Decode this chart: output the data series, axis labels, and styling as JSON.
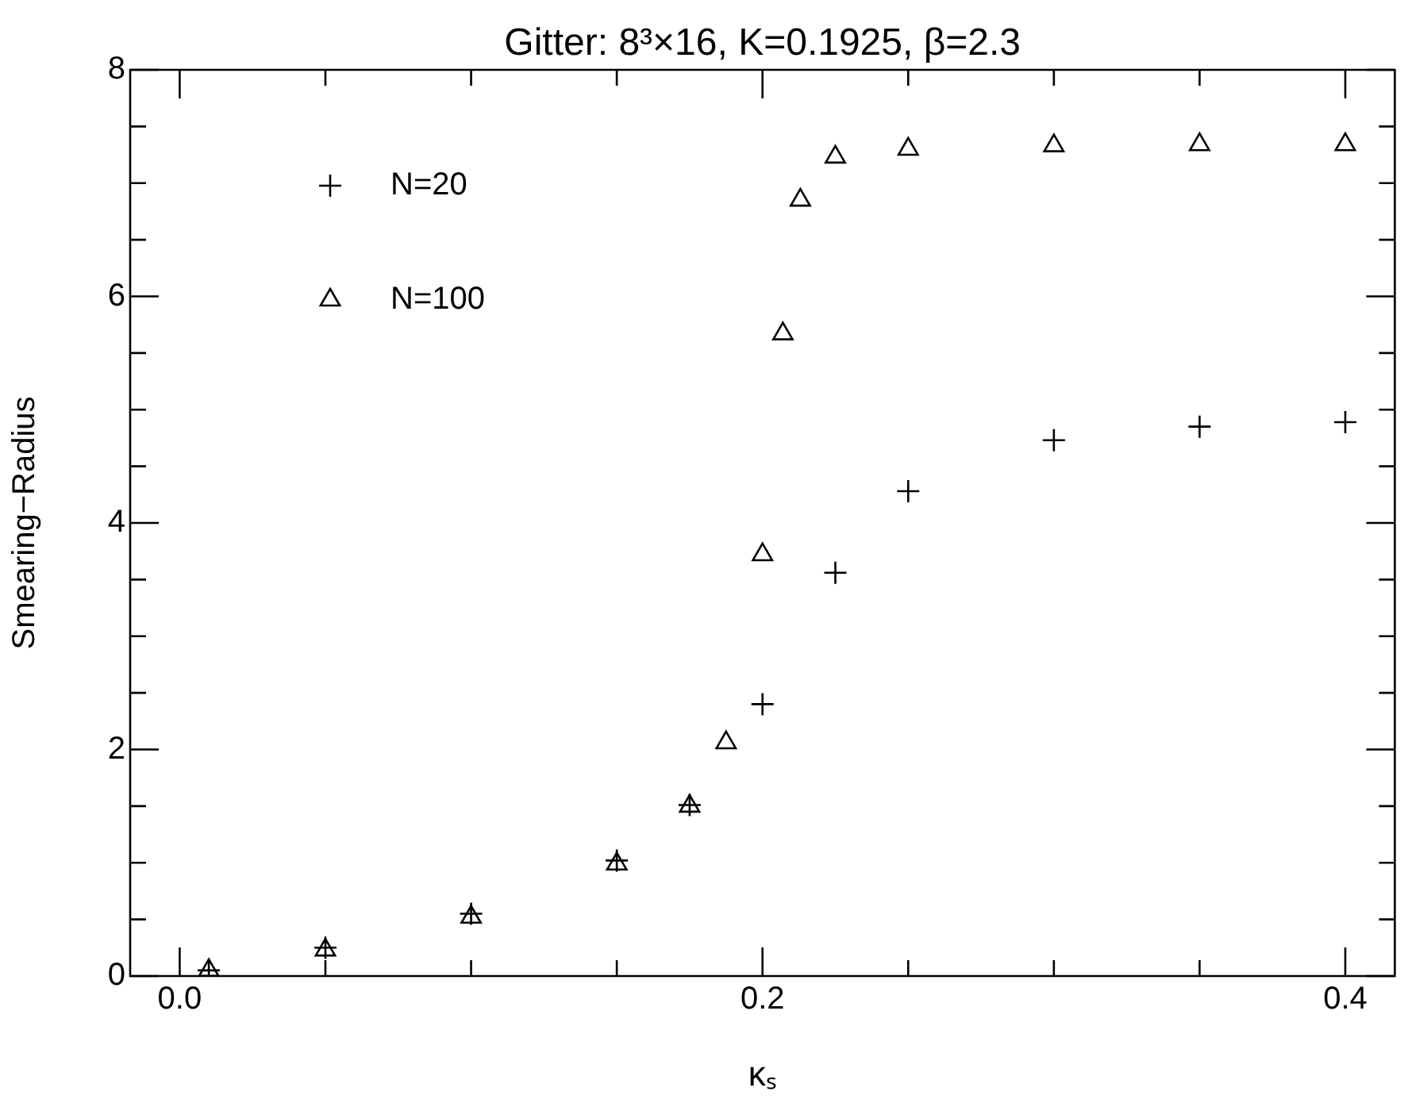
{
  "chart_data": {
    "type": "scatter",
    "title": "Gitter: 8³×16, K=0.1925, β=2.3",
    "xlabel": "κₛ",
    "ylabel": "Smearing−Radius",
    "xlim": [
      -0.017,
      0.417
    ],
    "xticks": [
      {
        "value": 0,
        "label": "0.0"
      },
      {
        "value": 0.05,
        "label": null
      },
      {
        "value": 0.1,
        "label": null
      },
      {
        "value": 0.15,
        "label": null
      },
      {
        "value": 0.2,
        "label": "0.2"
      },
      {
        "value": 0.25,
        "label": null
      },
      {
        "value": 0.3,
        "label": null
      },
      {
        "value": 0.35,
        "label": null
      },
      {
        "value": 0.4,
        "label": "0.4"
      }
    ],
    "ylim": [
      0,
      8
    ],
    "yticks": [
      0,
      {
        "value": 0.5,
        "label": null
      },
      {
        "value": 1,
        "label": null
      },
      {
        "value": 1.5,
        "label": null
      },
      2,
      {
        "value": 2.5,
        "label": null
      },
      {
        "value": 3,
        "label": null
      },
      {
        "value": 3.5,
        "label": null
      },
      4,
      {
        "value": 4.5,
        "label": null
      },
      {
        "value": 5,
        "label": null
      },
      {
        "value": 5.5,
        "label": null
      },
      6,
      {
        "value": 6.5,
        "label": null
      },
      {
        "value": 7,
        "label": null
      },
      {
        "value": 7.5,
        "label": null
      },
      8
    ],
    "grid": false,
    "legend": "top left",
    "series": [
      {
        "name": "N=20",
        "color": "#000000",
        "marker": "cross",
        "x": [
          0.01,
          0.05,
          0.1,
          0.15,
          0.175,
          0.2,
          0.225,
          0.25,
          0.3,
          0.35,
          0.4
        ],
        "values": [
          0.05,
          0.25,
          0.55,
          1.02,
          1.51,
          2.4,
          3.56,
          4.28,
          4.73,
          4.85,
          4.89
        ]
      },
      {
        "name": "N=100",
        "color": "#000000",
        "marker": "triangle",
        "x": [
          0.01,
          0.05,
          0.1,
          0.15,
          0.175,
          0.1875,
          0.2,
          0.207,
          0.213,
          0.225,
          0.25,
          0.3,
          0.35,
          0.4
        ],
        "values": [
          0.05,
          0.23,
          0.52,
          0.99,
          1.5,
          2.06,
          3.72,
          5.67,
          6.85,
          7.23,
          7.3,
          7.33,
          7.34,
          7.34
        ]
      }
    ]
  }
}
